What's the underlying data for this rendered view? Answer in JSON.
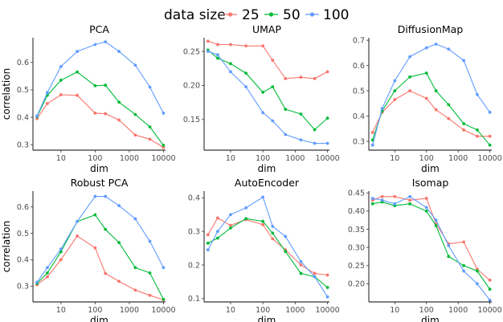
{
  "legend": {
    "title": "data size",
    "entries": [
      {
        "label": "25",
        "color": "#F8766D"
      },
      {
        "label": "50",
        "color": "#00BA38"
      },
      {
        "label": "100",
        "color": "#619CFF"
      }
    ]
  },
  "chart_data": [
    {
      "type": "line",
      "title": "PCA",
      "xlabel": "dim",
      "ylabel": "correlation",
      "x_scale": "log10",
      "x": [
        2,
        4,
        10,
        30,
        100,
        200,
        500,
        1500,
        4000,
        10000
      ],
      "xticks": [
        10,
        100,
        1000,
        10000
      ],
      "xtick_labels": [
        "10",
        "100",
        "1000",
        "10000"
      ],
      "ylim": [
        0.28,
        0.69
      ],
      "yticks": [
        0.3,
        0.4,
        0.5,
        0.6
      ],
      "ytick_labels": [
        "0.3",
        "0.4",
        "0.5",
        "0.6"
      ],
      "series": [
        {
          "name": "25",
          "values": [
            0.395,
            0.45,
            0.482,
            0.48,
            0.415,
            0.413,
            0.39,
            0.335,
            0.32,
            0.29
          ]
        },
        {
          "name": "50",
          "values": [
            0.402,
            0.48,
            0.535,
            0.565,
            0.515,
            0.517,
            0.455,
            0.41,
            0.365,
            0.298
          ]
        },
        {
          "name": "100",
          "values": [
            0.405,
            0.49,
            0.585,
            0.64,
            0.665,
            0.675,
            0.64,
            0.59,
            0.51,
            0.415
          ]
        }
      ]
    },
    {
      "type": "line",
      "title": "UMAP",
      "xlabel": "dim",
      "ylabel": "",
      "x_scale": "log10",
      "x": [
        2,
        4,
        10,
        30,
        100,
        200,
        500,
        1500,
        4000,
        10000
      ],
      "xticks": [
        10,
        100,
        1000,
        10000
      ],
      "xtick_labels": [
        "10",
        "100",
        "1000",
        "10000"
      ],
      "ylim": [
        0.105,
        0.27
      ],
      "yticks": [
        0.15,
        0.2,
        0.25
      ],
      "ytick_labels": [
        "0.15",
        "0.20",
        "0.25"
      ],
      "series": [
        {
          "name": "25",
          "values": [
            0.265,
            0.26,
            0.26,
            0.258,
            0.258,
            0.237,
            0.21,
            0.212,
            0.21,
            0.22
          ]
        },
        {
          "name": "50",
          "values": [
            0.252,
            0.24,
            0.232,
            0.218,
            0.19,
            0.198,
            0.165,
            0.158,
            0.135,
            0.152
          ]
        },
        {
          "name": "100",
          "values": [
            0.25,
            0.245,
            0.22,
            0.198,
            0.16,
            0.148,
            0.128,
            0.12,
            0.115,
            0.115
          ]
        }
      ]
    },
    {
      "type": "line",
      "title": "DiffusionMap",
      "xlabel": "dim",
      "ylabel": "",
      "x_scale": "log10",
      "x": [
        2,
        4,
        10,
        30,
        100,
        200,
        500,
        1500,
        4000,
        10000
      ],
      "xticks": [
        10,
        100,
        1000,
        10000
      ],
      "xtick_labels": [
        "10",
        "100",
        "1000",
        "10000"
      ],
      "ylim": [
        0.265,
        0.71
      ],
      "yticks": [
        0.3,
        0.4,
        0.5,
        0.6,
        0.7
      ],
      "ytick_labels": [
        "0.3",
        "0.4",
        "0.5",
        "0.6",
        "0.7"
      ],
      "series": [
        {
          "name": "25",
          "values": [
            0.335,
            0.415,
            0.465,
            0.5,
            0.47,
            0.425,
            0.39,
            0.345,
            0.32,
            0.32
          ]
        },
        {
          "name": "50",
          "values": [
            0.305,
            0.42,
            0.5,
            0.555,
            0.57,
            0.5,
            0.445,
            0.37,
            0.345,
            0.285
          ]
        },
        {
          "name": "100",
          "values": [
            0.285,
            0.43,
            0.54,
            0.635,
            0.67,
            0.685,
            0.665,
            0.62,
            0.485,
            0.415
          ]
        }
      ]
    },
    {
      "type": "line",
      "title": "Robust PCA",
      "xlabel": "dim",
      "ylabel": "correlation",
      "x_scale": "log10",
      "x": [
        2,
        4,
        10,
        30,
        100,
        200,
        500,
        1500,
        4000,
        10000
      ],
      "xticks": [
        10,
        100,
        1000,
        10000
      ],
      "xtick_labels": [
        "10",
        "100",
        "1000",
        "10000"
      ],
      "ylim": [
        0.24,
        0.66
      ],
      "yticks": [
        0.3,
        0.4,
        0.5,
        0.6
      ],
      "ytick_labels": [
        "0.3",
        "0.4",
        "0.5",
        "0.6"
      ],
      "series": [
        {
          "name": "25",
          "values": [
            0.305,
            0.335,
            0.4,
            0.49,
            0.445,
            0.348,
            0.318,
            0.285,
            0.265,
            0.248
          ]
        },
        {
          "name": "50",
          "values": [
            0.31,
            0.35,
            0.43,
            0.545,
            0.57,
            0.515,
            0.465,
            0.37,
            0.35,
            0.25
          ]
        },
        {
          "name": "100",
          "values": [
            0.315,
            0.37,
            0.44,
            0.545,
            0.64,
            0.64,
            0.605,
            0.555,
            0.47,
            0.37
          ]
        }
      ]
    },
    {
      "type": "line",
      "title": "AutoEncoder",
      "xlabel": "dim",
      "ylabel": "",
      "x_scale": "log10",
      "x": [
        2,
        4,
        10,
        30,
        100,
        200,
        500,
        1500,
        4000,
        10000
      ],
      "xticks": [
        10,
        100,
        1000,
        10000
      ],
      "xtick_labels": [
        "10",
        "100",
        "1000",
        "10000"
      ],
      "ylim": [
        0.09,
        0.42
      ],
      "yticks": [
        0.1,
        0.2,
        0.3,
        0.4
      ],
      "ytick_labels": [
        "0.1",
        "0.2",
        "0.3",
        "0.4"
      ],
      "series": [
        {
          "name": "25",
          "values": [
            0.29,
            0.34,
            0.318,
            0.335,
            0.32,
            0.278,
            0.245,
            0.2,
            0.175,
            0.17
          ]
        },
        {
          "name": "50",
          "values": [
            0.265,
            0.28,
            0.31,
            0.338,
            0.33,
            0.295,
            0.24,
            0.175,
            0.165,
            0.133
          ]
        },
        {
          "name": "100",
          "values": [
            0.245,
            0.3,
            0.35,
            0.37,
            0.402,
            0.315,
            0.285,
            0.21,
            0.165,
            0.105
          ]
        }
      ]
    },
    {
      "type": "line",
      "title": "Isomap",
      "xlabel": "dim",
      "ylabel": "",
      "x_scale": "log10",
      "x": [
        2,
        4,
        10,
        30,
        100,
        200,
        500,
        1500,
        4000,
        10000
      ],
      "xticks": [
        10,
        100,
        1000,
        10000
      ],
      "xtick_labels": [
        "10",
        "100",
        "1000",
        "10000"
      ],
      "ylim": [
        0.15,
        0.455
      ],
      "yticks": [
        0.2,
        0.25,
        0.3,
        0.35,
        0.4,
        0.45
      ],
      "ytick_labels": [
        "0.20",
        "0.25",
        "0.30",
        "0.35",
        "0.40",
        "0.45"
      ],
      "series": [
        {
          "name": "25",
          "values": [
            0.43,
            0.44,
            0.44,
            0.43,
            0.435,
            0.365,
            0.31,
            0.315,
            0.24,
            0.21
          ]
        },
        {
          "name": "50",
          "values": [
            0.42,
            0.425,
            0.415,
            0.42,
            0.4,
            0.36,
            0.275,
            0.25,
            0.235,
            0.185
          ]
        },
        {
          "name": "100",
          "values": [
            0.435,
            0.43,
            0.42,
            0.44,
            0.41,
            0.375,
            0.305,
            0.235,
            0.2,
            0.155
          ]
        }
      ]
    }
  ]
}
